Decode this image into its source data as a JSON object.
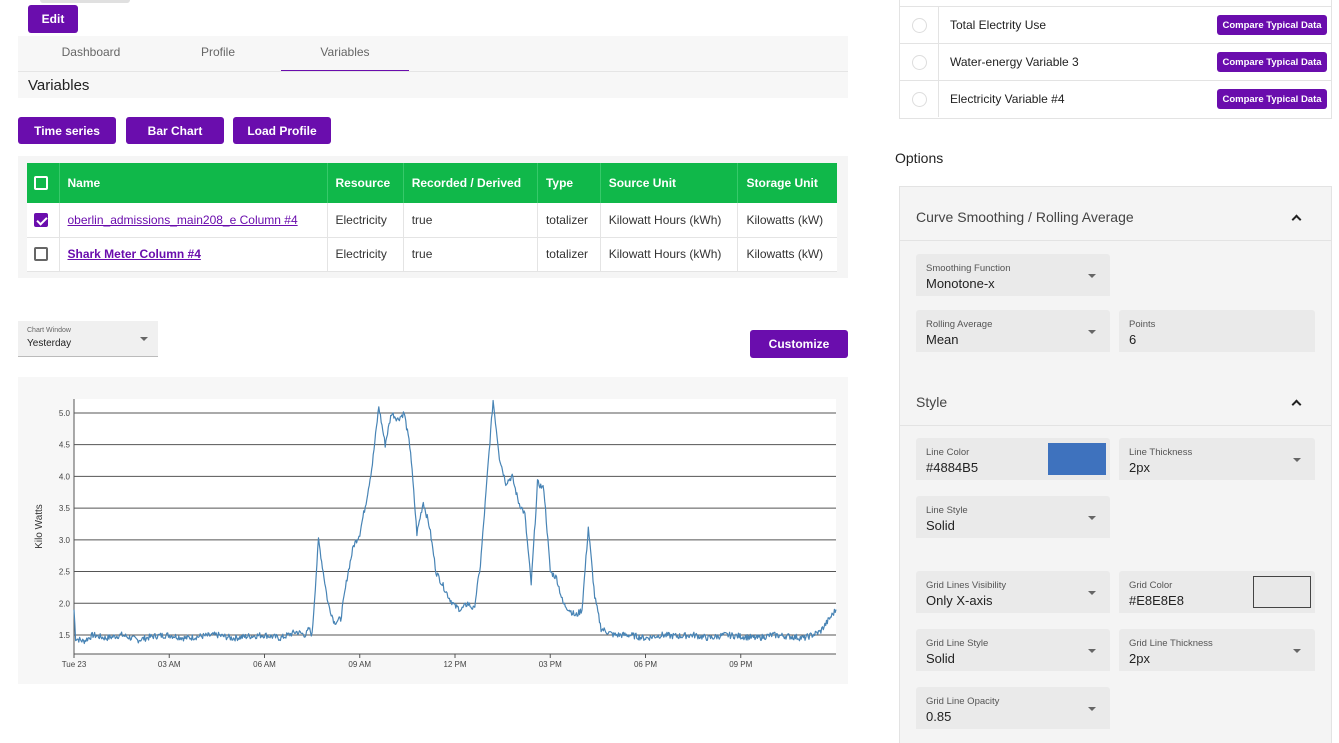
{
  "header": {
    "edit_label": "Edit"
  },
  "tabs": [
    {
      "label": "Dashboard"
    },
    {
      "label": "Profile"
    },
    {
      "label": "Variables"
    }
  ],
  "section_title": "Variables",
  "chart_buttons": {
    "time_series": "Time series",
    "bar_chart": "Bar Chart",
    "load_profile": "Load Profile"
  },
  "table": {
    "headers": [
      "Name",
      "Resource",
      "Recorded / Derived",
      "Type",
      "Source Unit",
      "Storage Unit"
    ],
    "rows": [
      {
        "checked": true,
        "name": "oberlin_admissions_main208_e Column #4",
        "resource": "Electricity",
        "recorded": "true",
        "type": "totalizer",
        "source_unit": "Kilowatt Hours (kWh)",
        "storage_unit": "Kilowatts (kW)"
      },
      {
        "checked": false,
        "name": "Shark Meter Column #4",
        "resource": "Electricity",
        "recorded": "true",
        "type": "totalizer",
        "source_unit": "Kilowatt Hours (kWh)",
        "storage_unit": "Kilowatts (kW)"
      }
    ]
  },
  "chart_window": {
    "label": "Chart Window",
    "value": "Yesterday"
  },
  "customize_label": "Customize",
  "chart_data": {
    "type": "line",
    "title": "",
    "xlabel": "",
    "ylabel": "Kilo Watts",
    "x_tick_labels": [
      "Tue 23",
      "03 AM",
      "06 AM",
      "09 AM",
      "12 PM",
      "03 PM",
      "06 PM",
      "09 PM"
    ],
    "x_tick_hours": [
      0,
      3,
      6,
      9,
      12,
      15,
      18,
      21
    ],
    "xlim_hours": [
      0,
      24
    ],
    "y_ticks": [
      1.5,
      2.0,
      2.5,
      3.0,
      3.5,
      4.0,
      4.5,
      5.0
    ],
    "ylim": [
      1.2,
      5.22
    ],
    "grid": "y-lines",
    "line_color": "#4884B5",
    "series": [
      {
        "hours": [
          0,
          0.05,
          0.3,
          0.6,
          1,
          1.5,
          2,
          2.5,
          3,
          3.5,
          4,
          4.5,
          5,
          5.5,
          6,
          6.5,
          7,
          7.3,
          7.4,
          7.5,
          7.7,
          8,
          8.2,
          8.4,
          8.6,
          8.8,
          9,
          9.2,
          9.4,
          9.6,
          9.8,
          10,
          10.2,
          10.4,
          10.6,
          10.8,
          11,
          11.2,
          11.4,
          11.6,
          11.8,
          12,
          12.2,
          12.4,
          12.6,
          12.8,
          13,
          13.2,
          13.4,
          13.6,
          13.8,
          14,
          14.2,
          14.4,
          14.6,
          14.8,
          15,
          15.2,
          15.4,
          15.6,
          15.8,
          16,
          16.2,
          16.4,
          16.6,
          16.8,
          17,
          17.5,
          18,
          18.5,
          19,
          19.5,
          20,
          20.5,
          21,
          21.5,
          22,
          22.5,
          23,
          23.5,
          24
        ],
        "kw": [
          1.9,
          1.45,
          1.4,
          1.5,
          1.45,
          1.5,
          1.42,
          1.48,
          1.5,
          1.45,
          1.48,
          1.5,
          1.45,
          1.48,
          1.5,
          1.45,
          1.55,
          1.5,
          1.6,
          1.5,
          3.0,
          2.0,
          1.7,
          1.75,
          2.4,
          2.9,
          3.1,
          3.6,
          4.2,
          5.1,
          4.5,
          5.0,
          4.9,
          5.0,
          4.4,
          3.1,
          3.6,
          3.2,
          2.5,
          2.3,
          2.1,
          1.95,
          1.9,
          2.0,
          1.9,
          2.6,
          3.9,
          5.2,
          4.3,
          3.9,
          4.0,
          3.6,
          3.4,
          2.3,
          3.9,
          3.8,
          2.5,
          2.4,
          2.0,
          1.9,
          1.8,
          1.9,
          3.2,
          2.1,
          1.6,
          1.55,
          1.5,
          1.5,
          1.45,
          1.5,
          1.48,
          1.5,
          1.45,
          1.5,
          1.48,
          1.45,
          1.5,
          1.48,
          1.45,
          1.55,
          1.9
        ]
      }
    ]
  },
  "typical": {
    "compare_label": "Compare Typical Data",
    "items": [
      "Total Electrity Use",
      "Water-energy Variable 3",
      "Electricity Variable #4"
    ]
  },
  "options": {
    "title": "Options",
    "smoothing": {
      "title": "Curve Smoothing / Rolling Average",
      "function_label": "Smoothing Function",
      "function_value": "Monotone-x",
      "rolling_label": "Rolling Average",
      "rolling_value": "Mean",
      "points_label": "Points",
      "points_value": "6"
    },
    "style": {
      "title": "Style",
      "line_color_label": "Line Color",
      "line_color_value": "#4884B5",
      "line_thickness_label": "Line Thickness",
      "line_thickness_value": "2px",
      "line_style_label": "Line Style",
      "line_style_value": "Solid",
      "grid_visibility_label": "Grid Lines Visibility",
      "grid_visibility_value": "Only X-axis",
      "grid_color_label": "Grid Color",
      "grid_color_value": "#E8E8E8",
      "grid_line_style_label": "Grid Line Style",
      "grid_line_style_value": "Solid",
      "grid_line_thickness_label": "Grid Line Thickness",
      "grid_line_thickness_value": "2px",
      "grid_opacity_label": "Grid Line Opacity",
      "grid_opacity_value": "0.85"
    }
  },
  "colors": {
    "accent": "#6a0dad",
    "table_header": "#10b84a",
    "line": "#4884B5",
    "line_swatch": "#3e72be",
    "grid_swatch": "#e8e8e8"
  }
}
